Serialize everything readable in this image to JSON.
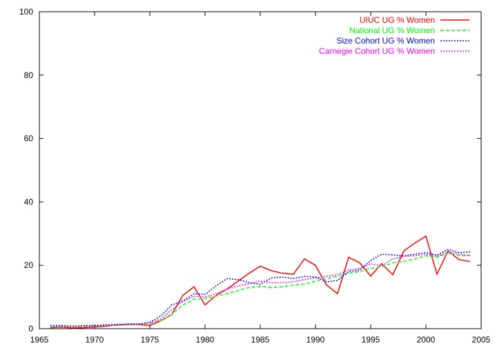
{
  "chart_data": {
    "type": "line",
    "title": "",
    "xlabel": "",
    "ylabel": "",
    "xlim": [
      1965,
      2005
    ],
    "ylim": [
      0,
      100
    ],
    "x_ticks": [
      1965,
      1970,
      1975,
      1980,
      1985,
      1990,
      1995,
      2000,
      2005
    ],
    "y_ticks": [
      0,
      20,
      40,
      60,
      80,
      100
    ],
    "grid": false,
    "legend_position": "top-right",
    "x": [
      1966,
      1967,
      1968,
      1969,
      1970,
      1971,
      1972,
      1973,
      1974,
      1975,
      1976,
      1977,
      1978,
      1979,
      1980,
      1981,
      1982,
      1983,
      1984,
      1985,
      1986,
      1987,
      1988,
      1989,
      1990,
      1991,
      1992,
      1993,
      1994,
      1995,
      1996,
      1997,
      1998,
      1999,
      2000,
      2001,
      2002,
      2003,
      2004
    ],
    "series": [
      {
        "name": "UIUC UG % Women",
        "color": "#ff0000",
        "dash": "solid",
        "values": [
          0.3,
          0.5,
          0.2,
          0.3,
          0.5,
          0.8,
          1.2,
          1.3,
          1.3,
          1.0,
          2.5,
          4.5,
          10.5,
          13.2,
          7.5,
          10.5,
          12.5,
          15.0,
          17.5,
          19.7,
          18.3,
          17.5,
          17.2,
          22.0,
          20.0,
          13.8,
          11.0,
          22.5,
          20.8,
          16.6,
          20.5,
          17.0,
          24.5,
          27.0,
          29.2,
          17.2,
          24.5,
          21.8,
          21.2
        ]
      },
      {
        "name": "National UG % Women",
        "color": "#00ff00",
        "dash": "dashed",
        "values": [
          0.5,
          0.6,
          0.5,
          0.7,
          0.8,
          1.0,
          1.1,
          1.2,
          1.4,
          1.7,
          2.5,
          4.5,
          7.5,
          9.3,
          9.5,
          10.3,
          11.0,
          12.0,
          13.0,
          13.3,
          13.0,
          13.2,
          13.8,
          14.0,
          15.0,
          15.8,
          16.5,
          17.5,
          18.0,
          19.0,
          19.5,
          20.8,
          21.2,
          22.0,
          23.0,
          22.5,
          23.8,
          23.0,
          23.2
        ]
      },
      {
        "name": "Size Cohort UG % Women",
        "color": "#0000ff",
        "dash": "dotted",
        "values": [
          1.0,
          1.0,
          0.8,
          1.0,
          1.0,
          1.2,
          1.3,
          1.5,
          1.5,
          2.0,
          4.0,
          7.5,
          8.8,
          11.0,
          10.8,
          13.5,
          15.8,
          15.5,
          14.5,
          14.0,
          16.0,
          16.3,
          15.8,
          16.5,
          16.3,
          14.8,
          15.2,
          18.0,
          18.5,
          21.5,
          23.5,
          23.3,
          23.0,
          23.5,
          24.0,
          23.2,
          25.0,
          24.0,
          24.2
        ]
      },
      {
        "name": "Carnegie Cohort UG % Women",
        "color": "#ff00ff",
        "dash": "dotted",
        "values": [
          0.6,
          0.7,
          0.6,
          0.8,
          0.8,
          1.0,
          1.1,
          1.3,
          1.4,
          1.8,
          3.0,
          6.0,
          8.5,
          10.2,
          10.0,
          11.0,
          12.5,
          13.5,
          14.2,
          15.0,
          14.5,
          14.5,
          14.8,
          15.5,
          16.0,
          16.5,
          17.0,
          18.5,
          19.0,
          20.5,
          19.8,
          22.0,
          22.8,
          23.0,
          23.5,
          22.8,
          24.2,
          23.5,
          23.0
        ]
      }
    ]
  }
}
